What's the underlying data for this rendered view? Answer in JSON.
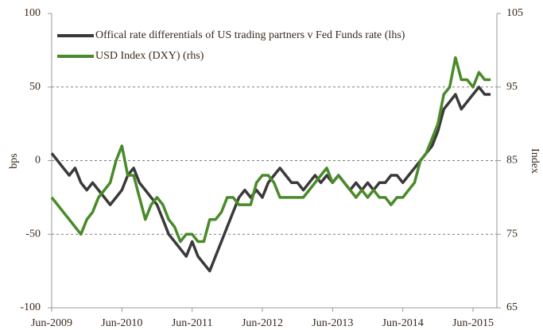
{
  "chart_data": {
    "type": "line",
    "x": [
      "Jun-2009",
      "Jul-2009",
      "Aug-2009",
      "Sep-2009",
      "Oct-2009",
      "Nov-2009",
      "Dec-2009",
      "Jan-2010",
      "Feb-2010",
      "Mar-2010",
      "Apr-2010",
      "May-2010",
      "Jun-2010",
      "Jul-2010",
      "Aug-2010",
      "Sep-2010",
      "Oct-2010",
      "Nov-2010",
      "Dec-2010",
      "Jan-2011",
      "Feb-2011",
      "Mar-2011",
      "Apr-2011",
      "May-2011",
      "Jun-2011",
      "Jul-2011",
      "Aug-2011",
      "Sep-2011",
      "Oct-2011",
      "Nov-2011",
      "Dec-2011",
      "Jan-2012",
      "Feb-2012",
      "Mar-2012",
      "Apr-2012",
      "May-2012",
      "Jun-2012",
      "Jul-2012",
      "Aug-2012",
      "Sep-2012",
      "Oct-2012",
      "Nov-2012",
      "Dec-2012",
      "Jan-2013",
      "Feb-2013",
      "Mar-2013",
      "Apr-2013",
      "May-2013",
      "Jun-2013",
      "Jul-2013",
      "Aug-2013",
      "Sep-2013",
      "Oct-2013",
      "Nov-2013",
      "Dec-2013",
      "Jan-2014",
      "Feb-2014",
      "Mar-2014",
      "Apr-2014",
      "May-2014",
      "Jun-2014",
      "Jul-2014",
      "Aug-2014",
      "Sep-2014",
      "Oct-2014",
      "Nov-2014",
      "Dec-2014",
      "Jan-2015",
      "Feb-2015",
      "Mar-2015",
      "Apr-2015",
      "May-2015",
      "Jun-2015",
      "Jul-2015",
      "Aug-2015",
      "Sep-2015"
    ],
    "xticks": [
      "Jun-2009",
      "Jun-2010",
      "Jun-2011",
      "Jun-2012",
      "Jun-2013",
      "Jun-2014",
      "Jun-2015"
    ],
    "ylabel": "bps",
    "y2label": "Index",
    "ylim": [
      -100,
      100
    ],
    "yticks": [
      -100,
      -50,
      0,
      50,
      100
    ],
    "y2lim": [
      65,
      105
    ],
    "y2ticks": [
      65,
      75,
      85,
      95,
      105
    ],
    "grid": true,
    "legend": "upper left",
    "series": [
      {
        "name": "Offical rate differentials of US trading partners v Fed Funds rate (lhs)",
        "color": "#3a3a3a",
        "axis": "y",
        "values": [
          5,
          0,
          -5,
          -10,
          -5,
          -15,
          -20,
          -15,
          -20,
          -25,
          -30,
          -25,
          -20,
          -10,
          -5,
          -15,
          -20,
          -25,
          -30,
          -40,
          -50,
          -55,
          -60,
          -65,
          -55,
          -65,
          -70,
          -75,
          -65,
          -55,
          -45,
          -35,
          -25,
          -20,
          -25,
          -20,
          -25,
          -15,
          -10,
          -5,
          -10,
          -15,
          -15,
          -20,
          -15,
          -10,
          -15,
          -10,
          -15,
          -10,
          -15,
          -20,
          -15,
          -20,
          -15,
          -20,
          -15,
          -15,
          -10,
          -10,
          -15,
          -10,
          -5,
          0,
          5,
          10,
          20,
          35,
          40,
          45,
          35,
          40,
          45,
          50,
          45,
          45
        ]
      },
      {
        "name": "USD Index (DXY) (rhs)",
        "color": "#4a8a2a",
        "axis": "y2",
        "values": [
          80,
          79,
          78,
          77,
          76,
          75,
          77,
          78,
          80,
          81,
          82,
          85,
          87,
          83,
          83,
          80,
          77,
          79,
          80,
          79,
          77,
          76,
          74,
          75,
          75,
          74,
          74,
          77,
          77,
          78,
          80,
          80,
          79,
          79,
          79,
          82,
          83,
          83,
          82,
          80,
          80,
          80,
          80,
          80,
          81,
          82,
          83,
          84,
          82,
          83,
          82,
          81,
          80,
          81,
          80,
          81,
          80,
          80,
          79,
          80,
          80,
          81,
          82,
          85,
          86,
          88,
          90,
          94,
          95,
          99,
          96,
          96,
          95,
          97,
          96,
          96
        ]
      }
    ]
  }
}
